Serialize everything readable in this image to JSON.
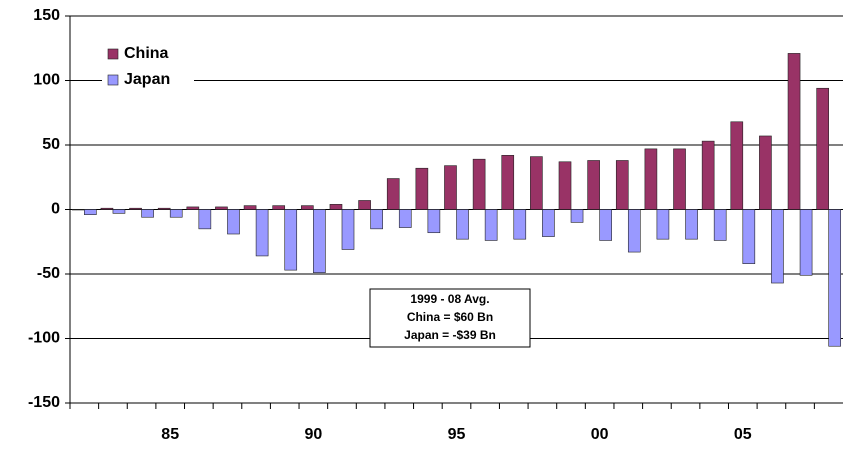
{
  "chart_data": {
    "type": "bar",
    "categories": [
      null,
      null,
      null,
      "85",
      null,
      null,
      null,
      null,
      "90",
      null,
      null,
      null,
      null,
      "95",
      null,
      null,
      null,
      null,
      "00",
      null,
      null,
      null,
      null,
      "05",
      null,
      null,
      null
    ],
    "series": [
      {
        "name": "China",
        "color": "#993366",
        "values": [
          0,
          1,
          1,
          1,
          2,
          2,
          3,
          3,
          3,
          4,
          7,
          24,
          32,
          34,
          39,
          42,
          41,
          37,
          38,
          38,
          47,
          47,
          53,
          68,
          57,
          121,
          94
        ]
      },
      {
        "name": "Japan",
        "color": "#9999ff",
        "values": [
          -4,
          -3,
          -6,
          -6,
          -15,
          -19,
          -36,
          -47,
          -49,
          -31,
          -15,
          -14,
          -18,
          -23,
          -24,
          -23,
          -21,
          -10,
          -24,
          -33,
          -23,
          -23,
          -24,
          -42,
          -57,
          -51,
          -106
        ]
      }
    ],
    "ylim": [
      -150,
      150
    ],
    "yticks": [
      -150,
      -100,
      -50,
      0,
      50,
      100,
      150
    ],
    "grid": true,
    "legend": "upper left",
    "annotation": [
      "1999 - 08 Avg.",
      "China = $60 Bn",
      "Japan = -$39 Bn"
    ]
  }
}
